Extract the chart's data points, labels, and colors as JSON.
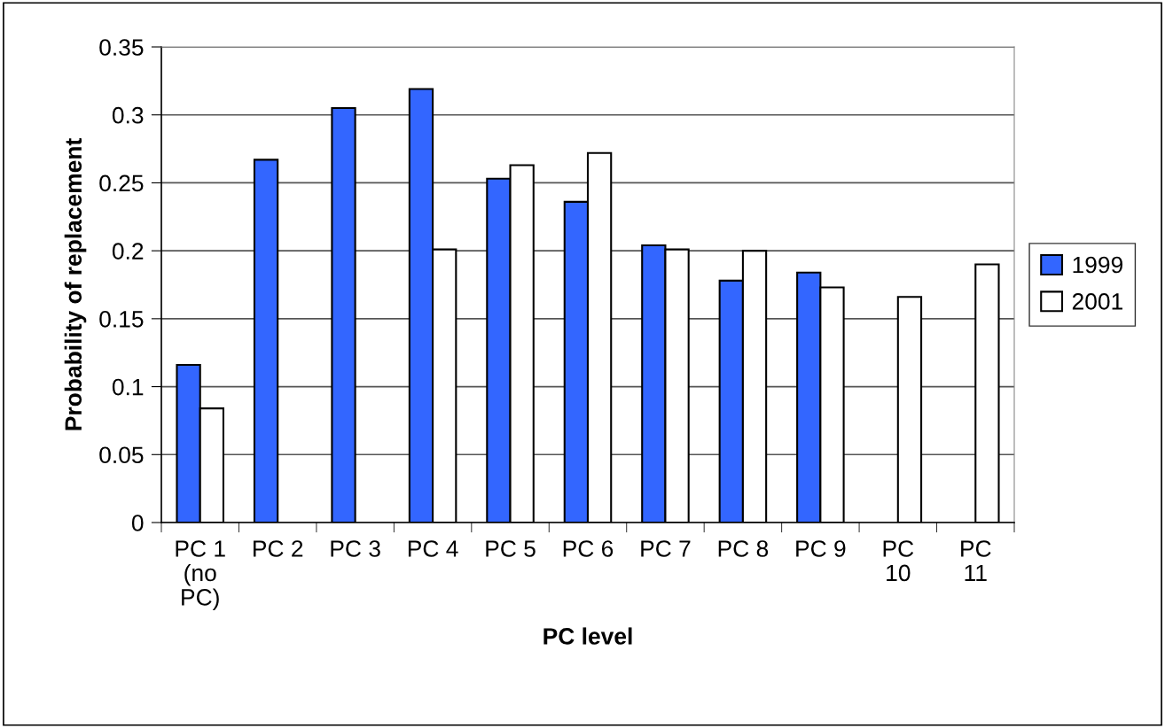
{
  "chart_data": {
    "type": "bar",
    "xlabel": "PC level",
    "ylabel": "Probability of replacement",
    "categories": [
      "PC 1\n(no\nPC)",
      "PC 2",
      "PC 3",
      "PC 4",
      "PC 5",
      "PC 6",
      "PC 7",
      "PC 8",
      "PC 9",
      "PC\n10",
      "PC\n11"
    ],
    "series": [
      {
        "name": "1999",
        "color": "#3366ff",
        "values": [
          0.116,
          0.267,
          0.305,
          0.319,
          0.253,
          0.236,
          0.204,
          0.178,
          0.184,
          null,
          null
        ]
      },
      {
        "name": "2001",
        "color": "#ffffff",
        "values": [
          0.084,
          null,
          null,
          0.201,
          0.263,
          0.272,
          0.201,
          0.2,
          0.173,
          0.166,
          0.19
        ]
      }
    ],
    "ylim": [
      0,
      0.35
    ],
    "yticks": [
      {
        "value": 0,
        "label": "0"
      },
      0.05,
      0.1,
      0.15,
      0.2,
      0.25,
      0.3,
      0.35
    ],
    "grid": "y",
    "legend": "right"
  }
}
